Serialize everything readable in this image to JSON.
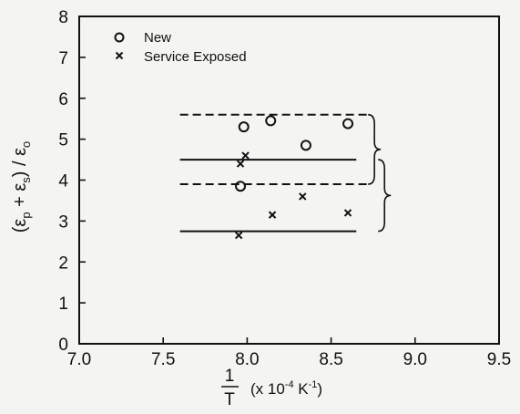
{
  "chart_data": {
    "type": "scatter",
    "xlim": [
      7.0,
      9.5
    ],
    "ylim": [
      0,
      8
    ],
    "x_ticks": [
      7.0,
      7.5,
      8.0,
      8.5,
      9.0,
      9.5
    ],
    "x_tick_labels": [
      "7.0",
      "7.5",
      "8.0",
      "8.5",
      "9.0",
      "9.5"
    ],
    "y_ticks": [
      0,
      1,
      2,
      3,
      4,
      5,
      6,
      7,
      8
    ],
    "y_tick_labels": [
      "0",
      "1",
      "2",
      "3",
      "4",
      "5",
      "6",
      "7",
      "8"
    ],
    "xlabel": {
      "fraction_numerator": "1",
      "fraction_denominator": "T",
      "units_prefix": "(x 10",
      "units_exponent": "-4",
      "units_unit": " K",
      "units_unit_exponent": "-1",
      "units_suffix": ")"
    },
    "ylabel": {
      "open": "(ε",
      "sub1": "p",
      "plus": " + ε",
      "sub2": "s",
      "close": ") / ε",
      "sub3": "o"
    },
    "legend_position": "top-left",
    "grid": false,
    "series": [
      {
        "name": "New",
        "marker": "circle",
        "points": [
          [
            7.96,
            3.85
          ],
          [
            7.98,
            5.3
          ],
          [
            8.14,
            5.45
          ],
          [
            8.35,
            4.85
          ],
          [
            8.6,
            5.38
          ]
        ]
      },
      {
        "name": "Service Exposed",
        "marker": "x",
        "points": [
          [
            7.95,
            2.65
          ],
          [
            7.96,
            4.4
          ],
          [
            7.99,
            4.6
          ],
          [
            8.15,
            3.15
          ],
          [
            8.33,
            3.6
          ],
          [
            8.6,
            3.2
          ]
        ]
      }
    ],
    "reference_lines": [
      {
        "style": "dashed",
        "y": 5.6,
        "x": [
          7.6,
          8.72
        ]
      },
      {
        "style": "solid",
        "y": 4.5,
        "x": [
          7.6,
          8.65
        ]
      },
      {
        "style": "dashed",
        "y": 3.9,
        "x": [
          7.6,
          8.72
        ]
      },
      {
        "style": "solid",
        "y": 2.75,
        "x": [
          7.6,
          8.65
        ]
      }
    ],
    "braces": [
      {
        "y_range": [
          3.9,
          5.6
        ],
        "x": 8.72
      },
      {
        "y_range": [
          2.75,
          4.5
        ],
        "x": 8.78
      }
    ]
  }
}
